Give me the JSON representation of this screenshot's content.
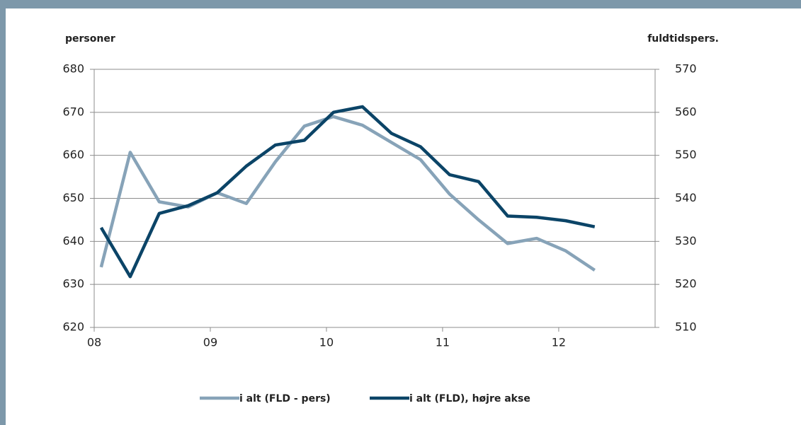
{
  "chart_data": {
    "type": "line",
    "ylabel": "personer",
    "y2label": "fuldtidspers.",
    "x": [
      2008.06,
      2008.31,
      2008.56,
      2008.81,
      2009.06,
      2009.31,
      2009.56,
      2009.81,
      2010.06,
      2010.31,
      2010.56,
      2010.81,
      2011.06,
      2011.31,
      2011.56,
      2011.81,
      2012.06,
      2012.31
    ],
    "xlim": [
      2008,
      2012.83
    ],
    "xticks": [
      {
        "value": 2008,
        "label": "08"
      },
      {
        "value": 2009,
        "label": "09"
      },
      {
        "value": 2010,
        "label": "10"
      },
      {
        "value": 2011,
        "label": "11"
      },
      {
        "value": 2012,
        "label": "12"
      }
    ],
    "ylim": [
      620,
      680
    ],
    "yticks": [
      620,
      630,
      640,
      650,
      660,
      670,
      680
    ],
    "y2lim": [
      510,
      570
    ],
    "y2ticks": [
      510,
      520,
      530,
      540,
      550,
      560,
      570
    ],
    "grid": true,
    "series": [
      {
        "name": "i alt (FLD - pers)",
        "color": "#87a3b8",
        "values": [
          634,
          660.7,
          649.2,
          648,
          651.3,
          648.8,
          658.5,
          666.8,
          669,
          667,
          663,
          659,
          651,
          645,
          639.5,
          640.7,
          637.8,
          633.3
        ]
      },
      {
        "name": "i alt (FLD), højre akse",
        "color": "#0b4467",
        "axis": "y2",
        "values": [
          533.2,
          521.8,
          536.5,
          538.3,
          541.3,
          547.5,
          552.4,
          553.5,
          560,
          561.3,
          555.1,
          552,
          545.5,
          543.9,
          535.9,
          535.6,
          534.8,
          533.4
        ]
      }
    ]
  }
}
